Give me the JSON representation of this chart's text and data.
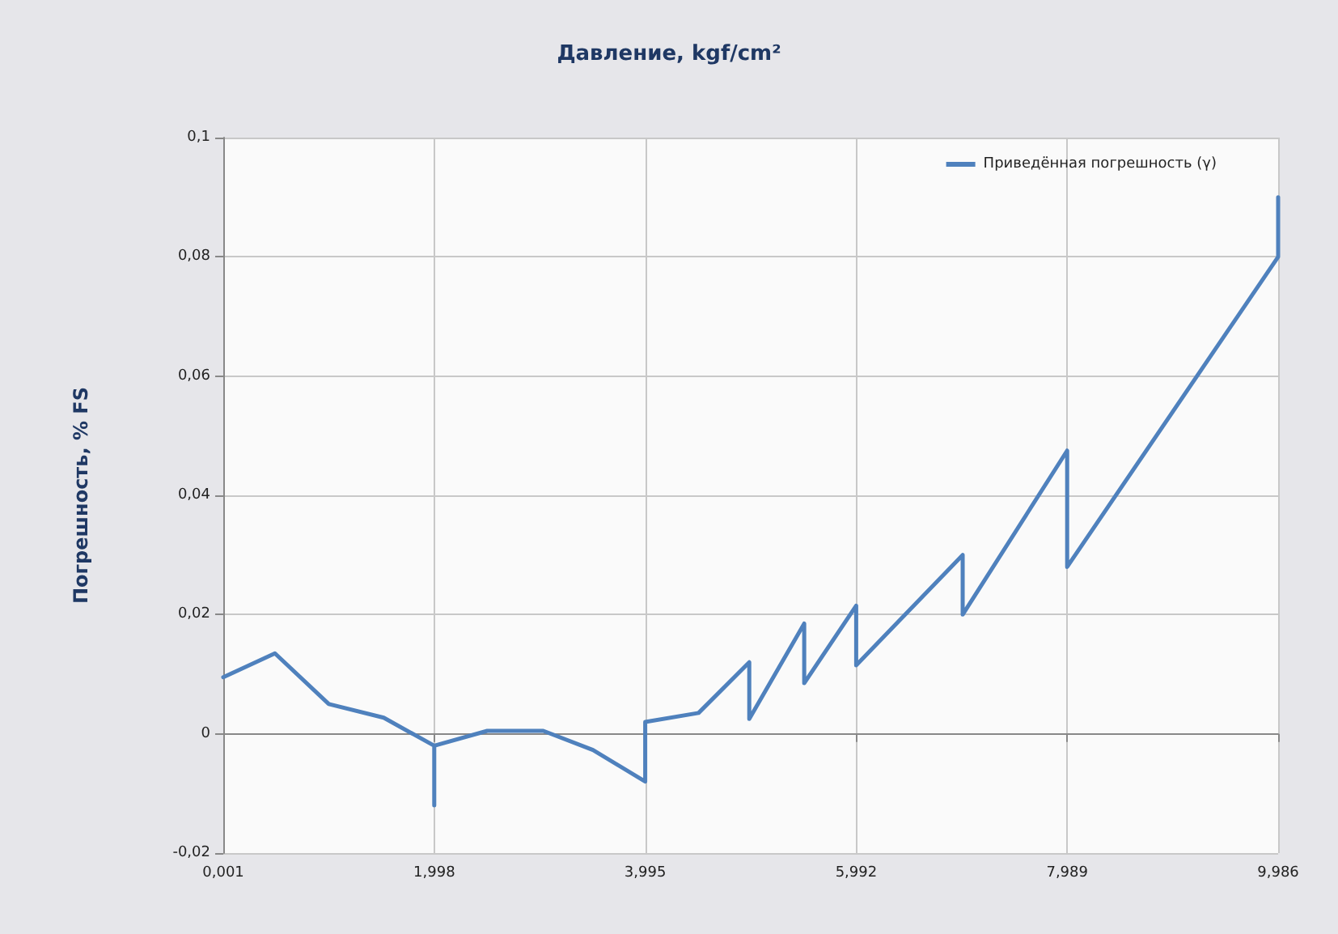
{
  "chart_data": {
    "type": "line",
    "title": "Давление, kgf/cm²",
    "ylabel": "Погрешность, % FS",
    "series": [
      {
        "name": "Приведённая погрешность (γ)",
        "color": "#4f81bd",
        "x": [
          0.001,
          0.49,
          1.0,
          1.52,
          1.998,
          1.998,
          1.998,
          2.5,
          3.03,
          3.5,
          3.995,
          3.995,
          4.5,
          4.98,
          4.98,
          5.5,
          5.5,
          5.992,
          5.992,
          7.0,
          7.0,
          7.989,
          7.989,
          9.986,
          9.986
        ],
        "values": [
          0.0095,
          0.0135,
          0.005,
          0.0027,
          -0.002,
          -0.012,
          -0.002,
          0.0005,
          0.0005,
          -0.0027,
          -0.008,
          0.002,
          0.0035,
          0.012,
          0.0025,
          0.0185,
          0.0085,
          0.0215,
          0.0115,
          0.03,
          0.02,
          0.0475,
          0.028,
          0.08,
          0.09
        ]
      }
    ],
    "xlim": [
      0.001,
      9.986
    ],
    "xticks": [
      {
        "value": 0.001,
        "label": "0,001"
      },
      {
        "value": 1.998,
        "label": "1,998"
      },
      {
        "value": 3.995,
        "label": "3,995"
      },
      {
        "value": 5.992,
        "label": "5,992"
      },
      {
        "value": 7.989,
        "label": "7,989"
      },
      {
        "value": 9.986,
        "label": "9,986"
      }
    ],
    "ylim": [
      -0.02,
      0.1
    ],
    "yticks": [
      {
        "value": -0.02,
        "label": "-0,02"
      },
      {
        "value": 0,
        "label": "0"
      },
      {
        "value": 0.02,
        "label": "0,02"
      },
      {
        "value": 0.04,
        "label": "0,04"
      },
      {
        "value": 0.06,
        "label": "0,06"
      },
      {
        "value": 0.08,
        "label": "0,08"
      },
      {
        "value": 0.1,
        "label": "0,1"
      }
    ],
    "grid": true,
    "legend": "top right",
    "marker": "none",
    "line_style": "solid"
  }
}
